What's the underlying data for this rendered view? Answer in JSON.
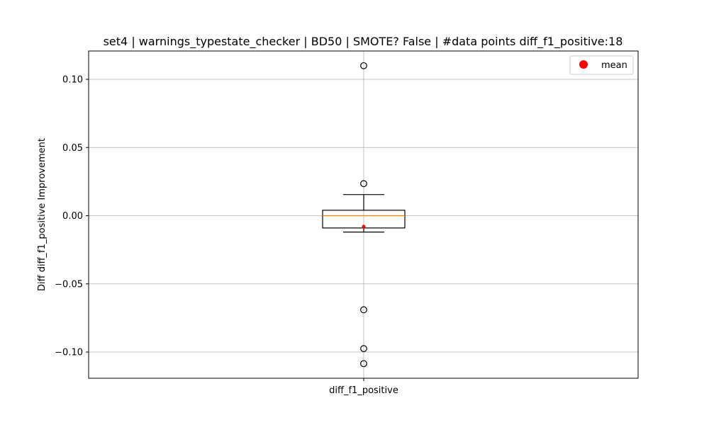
{
  "chart_data": {
    "type": "box",
    "title": "set4 | warnings_typestate_checker | BD50 | SMOTE? False | #data points diff_f1_positive:18",
    "xlabel": "",
    "ylabel": "Diff diff_f1_positive Improvement",
    "categories": [
      "diff_f1_positive"
    ],
    "ylim": [
      -0.12,
      0.12
    ],
    "yticks": [
      0.1,
      0.05,
      0.0,
      -0.05,
      -0.1
    ],
    "ytick_labels": [
      "0.10",
      "0.05",
      "0.00",
      "−0.05",
      "−0.10"
    ],
    "grid": true,
    "legend": {
      "placement": "top-right",
      "entries": [
        {
          "label": "mean",
          "color": "#ff0000",
          "marker": "circle"
        }
      ]
    },
    "box": {
      "q1": -0.009,
      "median": 0.0,
      "q3": 0.004,
      "whisker_low": -0.012,
      "whisker_high": 0.0155,
      "mean": -0.008,
      "outliers": [
        0.11,
        0.0235,
        -0.069,
        -0.0975,
        -0.1085
      ]
    },
    "colors": {
      "box": "#000000",
      "median": "#ff7f0e",
      "mean": "#ff0000",
      "grid": "#b0b0b0"
    }
  }
}
